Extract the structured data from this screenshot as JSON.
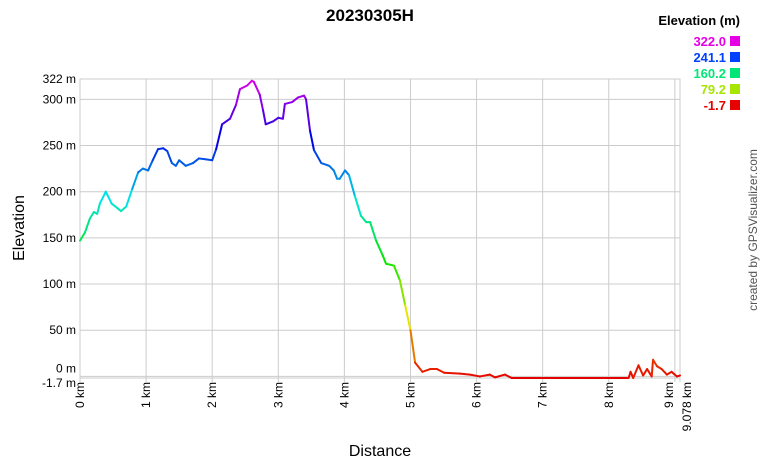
{
  "chart_data": {
    "type": "line",
    "title": "20230305H",
    "xlabel": "Distance",
    "ylabel": "Elevation",
    "xlim": [
      0,
      9.078
    ],
    "ylim": [
      -1.7,
      322
    ],
    "x_unit": "km",
    "y_unit": "m",
    "grid": true,
    "x_ticks": [
      "0 km",
      "1 km",
      "2 km",
      "3 km",
      "4 km",
      "5 km",
      "6 km",
      "7 km",
      "8 km",
      "9 km",
      "9.078 km"
    ],
    "x_tick_values": [
      0,
      1,
      2,
      3,
      4,
      5,
      6,
      7,
      8,
      9,
      9.078
    ],
    "y_ticks": [
      "322 m",
      "300 m",
      "250 m",
      "200 m",
      "150 m",
      "100 m",
      "50 m",
      "0 m",
      "-1.7 m"
    ],
    "y_tick_values": [
      322,
      300,
      250,
      200,
      150,
      100,
      50,
      0,
      -1.7
    ],
    "legend": {
      "title": "Elevation (m)",
      "placement": "top-right",
      "entries": [
        {
          "label": "322.0",
          "color": "#e600e6"
        },
        {
          "label": "241.1",
          "color": "#0040ff"
        },
        {
          "label": "160.2",
          "color": "#00e676"
        },
        {
          "label": "79.2",
          "color": "#a6e600"
        },
        {
          "label": "-1.7",
          "color": "#e60000"
        }
      ]
    },
    "color_scale": "elevation gradient red-yellow-green-cyan-blue-magenta",
    "points": [
      [
        0,
        147
      ],
      [
        0.076,
        156
      ],
      [
        0.15,
        171
      ],
      [
        0.21,
        178
      ],
      [
        0.26,
        176
      ],
      [
        0.3,
        187
      ],
      [
        0.39,
        200
      ],
      [
        0.48,
        187
      ],
      [
        0.57,
        182
      ],
      [
        0.62,
        179
      ],
      [
        0.7,
        184
      ],
      [
        0.79,
        203
      ],
      [
        0.88,
        221
      ],
      [
        0.95,
        225
      ],
      [
        1.03,
        223
      ],
      [
        1.1,
        234
      ],
      [
        1.18,
        246
      ],
      [
        1.26,
        247
      ],
      [
        1.32,
        244
      ],
      [
        1.39,
        231
      ],
      [
        1.45,
        228
      ],
      [
        1.5,
        234
      ],
      [
        1.6,
        228
      ],
      [
        1.71,
        231
      ],
      [
        1.8,
        236
      ],
      [
        1.91,
        235
      ],
      [
        2.0,
        234
      ],
      [
        2.06,
        246
      ],
      [
        2.15,
        273
      ],
      [
        2.27,
        279
      ],
      [
        2.36,
        294
      ],
      [
        2.42,
        311
      ],
      [
        2.53,
        315
      ],
      [
        2.6,
        320
      ],
      [
        2.63,
        319
      ],
      [
        2.72,
        305
      ],
      [
        2.77,
        288
      ],
      [
        2.81,
        273
      ],
      [
        2.92,
        276
      ],
      [
        3.0,
        280
      ],
      [
        3.07,
        279
      ],
      [
        3.1,
        295
      ],
      [
        3.21,
        297
      ],
      [
        3.3,
        302
      ],
      [
        3.39,
        304
      ],
      [
        3.42,
        300
      ],
      [
        3.48,
        266
      ],
      [
        3.54,
        245
      ],
      [
        3.65,
        231
      ],
      [
        3.77,
        228
      ],
      [
        3.84,
        223
      ],
      [
        3.89,
        214
      ],
      [
        3.93,
        214
      ],
      [
        4.01,
        223
      ],
      [
        4.07,
        218
      ],
      [
        4.16,
        195
      ],
      [
        4.25,
        174
      ],
      [
        4.33,
        167
      ],
      [
        4.39,
        167
      ],
      [
        4.48,
        147
      ],
      [
        4.58,
        131
      ],
      [
        4.63,
        122
      ],
      [
        4.75,
        120
      ],
      [
        4.84,
        104
      ],
      [
        4.92,
        77
      ],
      [
        5.0,
        50
      ],
      [
        5.07,
        15
      ],
      [
        5.18,
        5
      ],
      [
        5.3,
        8
      ],
      [
        5.4,
        8
      ],
      [
        5.51,
        4
      ],
      [
        5.75,
        3
      ],
      [
        5.9,
        2
      ],
      [
        6.05,
        0
      ],
      [
        6.2,
        2
      ],
      [
        6.28,
        -1
      ],
      [
        6.43,
        2
      ],
      [
        6.53,
        -1.7
      ],
      [
        7.5,
        -1.7
      ],
      [
        8.3,
        -1.7
      ],
      [
        8.33,
        5
      ],
      [
        8.37,
        -1.7
      ],
      [
        8.45,
        12
      ],
      [
        8.52,
        1
      ],
      [
        8.58,
        8
      ],
      [
        8.65,
        0
      ],
      [
        8.67,
        18
      ],
      [
        8.73,
        11
      ],
      [
        8.8,
        8
      ],
      [
        8.88,
        2
      ],
      [
        8.95,
        5
      ],
      [
        9.03,
        0
      ],
      [
        9.078,
        1
      ]
    ]
  },
  "credit": "created by GPSVisualizer.com"
}
